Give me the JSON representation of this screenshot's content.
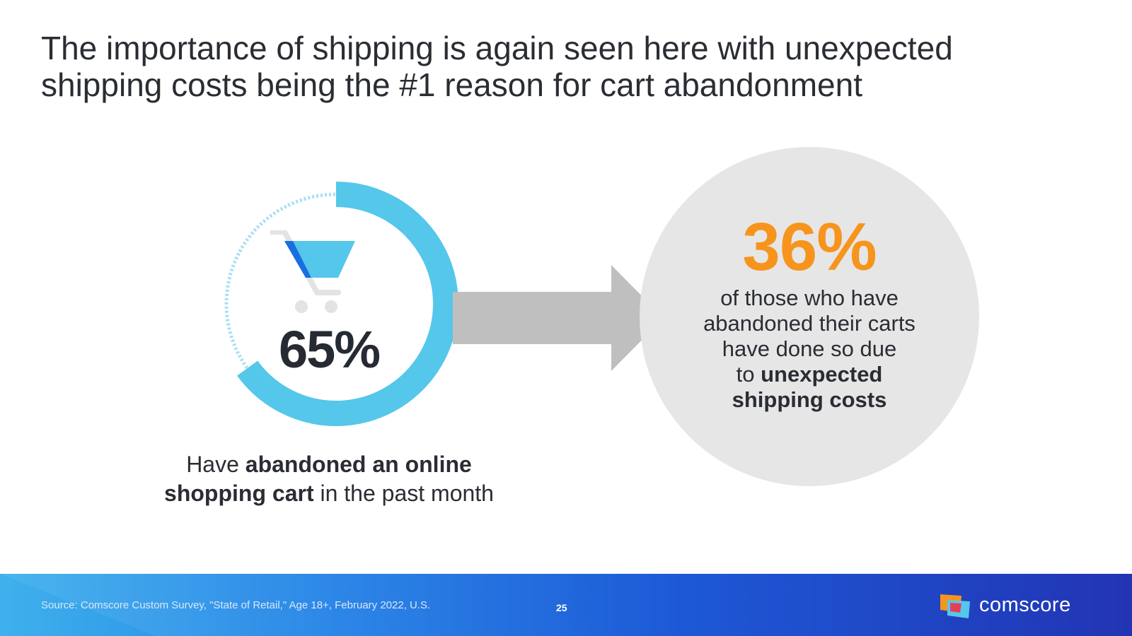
{
  "slide": {
    "title": "The importance of shipping is again seen here with unexpected shipping costs being the #1 reason for cart abandonment"
  },
  "left_stat": {
    "value": "65%",
    "fraction": 0.65,
    "caption": {
      "pre": "Have ",
      "bold1": "abandoned an online",
      "bold2": "shopping cart",
      "post": " in the past month"
    }
  },
  "right_stat": {
    "value": "36%",
    "caption": {
      "line1": "of those who have",
      "line2": "abandoned their carts",
      "line3": "have done so due",
      "pre4": "to ",
      "bold4": "unexpected",
      "bold5": "shipping costs"
    }
  },
  "icons": {
    "cart": "shopping-cart-icon",
    "arrow": "right-arrow-icon",
    "logo": "comscore-logo-icon"
  },
  "colors": {
    "donut": "#55c7ea",
    "donut_remainder": "#a9dff3",
    "highlight": "#f7941d",
    "cart_blue": "#1a6fe0",
    "cart_light": "#55c7ea",
    "circle_bg": "#e6e6e6",
    "arrow": "#bfbfbf"
  },
  "footer": {
    "source": "Source: Comscore Custom Survey, \"State of Retail,\" Age 18+, February 2022, U.S.",
    "page_number": "25",
    "brand": "comscore"
  }
}
